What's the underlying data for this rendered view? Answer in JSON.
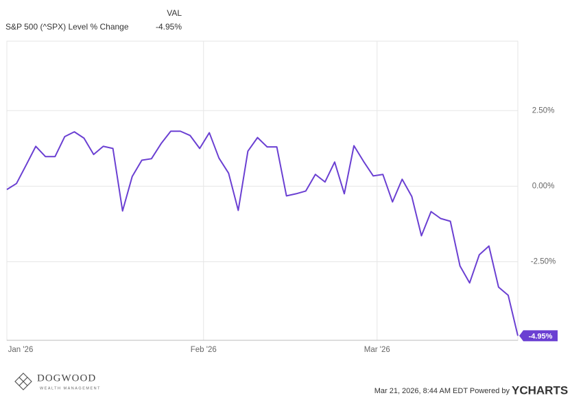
{
  "chart_data": {
    "type": "line",
    "header": {
      "value_column": "VAL",
      "series_value": "-4.95%"
    },
    "categories": [
      null,
      "Jan '26",
      null,
      null,
      null,
      null,
      null,
      null,
      null,
      null,
      null,
      null,
      null,
      null,
      null,
      null,
      null,
      null,
      null,
      null,
      null,
      "Feb '26",
      null,
      null,
      null,
      null,
      null,
      null,
      null,
      null,
      null,
      null,
      null,
      null,
      null,
      null,
      null,
      null,
      null,
      "Mar '26",
      null,
      null,
      null,
      null,
      null,
      null,
      null,
      null,
      null,
      null,
      null,
      null,
      null,
      null
    ],
    "series": [
      {
        "name": "S&P 500 (^SPX) Level % Change",
        "color": "#6a3fd2",
        "values": [
          -0.11,
          0.09,
          0.7,
          1.32,
          0.98,
          0.98,
          1.64,
          1.8,
          1.59,
          1.05,
          1.32,
          1.25,
          -0.82,
          0.32,
          0.86,
          0.91,
          1.41,
          1.82,
          1.82,
          1.68,
          1.25,
          1.77,
          0.93,
          0.43,
          -0.8,
          1.16,
          1.61,
          1.3,
          1.3,
          -0.32,
          -0.25,
          -0.16,
          0.39,
          0.14,
          0.8,
          -0.25,
          1.34,
          0.82,
          0.34,
          0.39,
          -0.52,
          0.23,
          -0.34,
          -1.64,
          -0.84,
          -1.07,
          -1.16,
          -2.64,
          -3.2,
          -2.27,
          -1.98,
          -3.34,
          -3.61,
          -4.95
        ]
      }
    ],
    "end_label": "-4.95%",
    "ylim": [
      -5.1,
      4.8
    ],
    "yticks": [
      {
        "value": 2.5,
        "label": "2.50%"
      },
      {
        "value": 0,
        "label": "0.00%"
      },
      {
        "value": -2.5,
        "label": "-2.50%"
      }
    ],
    "grid": true,
    "footer": {
      "brand": "DOGWOOD",
      "brand_sub": "WEALTH MANAGEMENT",
      "timestamp": "Mar 21, 2026, 8:44 AM EDT Powered by",
      "provider": "YCHARTS"
    }
  }
}
